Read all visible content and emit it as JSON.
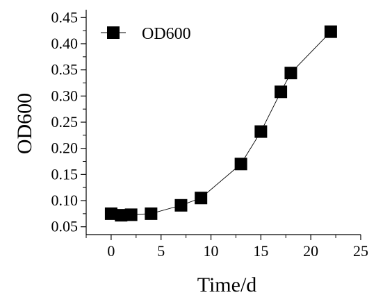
{
  "chart_data": {
    "type": "line",
    "xlabel": "Time/d",
    "ylabel": "OD600",
    "xlim": [
      -2.5,
      25
    ],
    "ylim": [
      0.035,
      0.465
    ],
    "x_ticks": [
      0,
      5,
      10,
      15,
      20,
      25
    ],
    "y_ticks": [
      0.05,
      0.1,
      0.15,
      0.2,
      0.25,
      0.3,
      0.35,
      0.4,
      0.45
    ],
    "x_tick_labels": [
      "0",
      "5",
      "10",
      "15",
      "20",
      "25"
    ],
    "y_tick_labels": [
      "0.05",
      "0.10",
      "0.15",
      "0.20",
      "0.25",
      "0.30",
      "0.35",
      "0.40",
      "0.45"
    ],
    "grid": false,
    "legend_position": "top-left",
    "series": [
      {
        "name": "OD600",
        "marker": "square",
        "color": "#000000",
        "x": [
          0,
          1,
          2,
          4,
          7,
          9,
          13,
          15,
          17,
          18,
          22
        ],
        "y": [
          0.075,
          0.072,
          0.073,
          0.075,
          0.091,
          0.105,
          0.17,
          0.232,
          0.308,
          0.344,
          0.423
        ]
      }
    ]
  }
}
